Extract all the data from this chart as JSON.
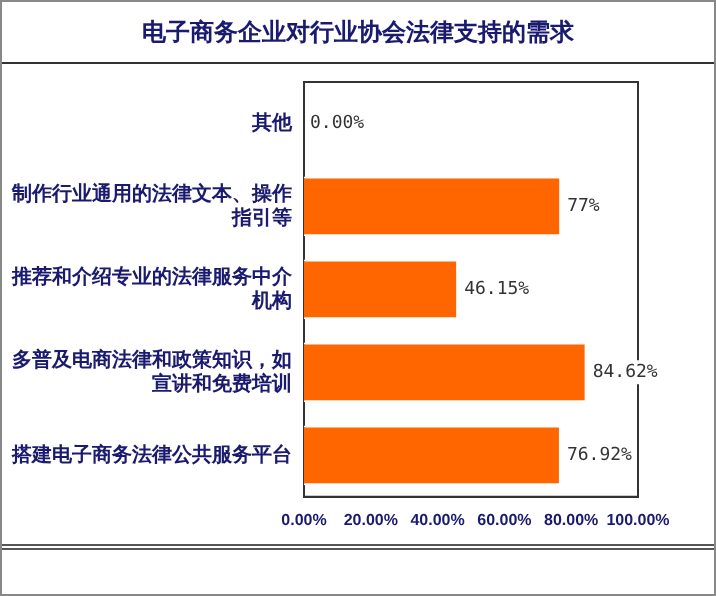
{
  "chart_data": {
    "type": "bar",
    "orientation": "horizontal",
    "title": "电子商务企业对行业协会法律支持的需求",
    "categories": [
      "其他",
      "制作行业通用的法律文本、操作指引等",
      "推荐和介绍专业的法律服务中介机构",
      "多普及电商法律和政策知识，如宣讲和免费培训",
      "搭建电子商务法律公共服务平台"
    ],
    "values": [
      0,
      77,
      46.15,
      84.62,
      76.92
    ],
    "value_labels": [
      "0.00%",
      "77%",
      "46.15%",
      "84.62%",
      "76.92%"
    ],
    "color": "#ff6600",
    "xlim": [
      0,
      100
    ],
    "xticks": [
      {
        "value": 0,
        "label": "0.00%"
      },
      {
        "value": 20,
        "label": "20.00%"
      },
      {
        "value": 40,
        "label": "40.00%"
      },
      {
        "value": 60,
        "label": "60.00%"
      },
      {
        "value": 80,
        "label": "80.00%"
      },
      {
        "value": 100,
        "label": "100.00%"
      }
    ],
    "grid": false,
    "legend": false
  }
}
